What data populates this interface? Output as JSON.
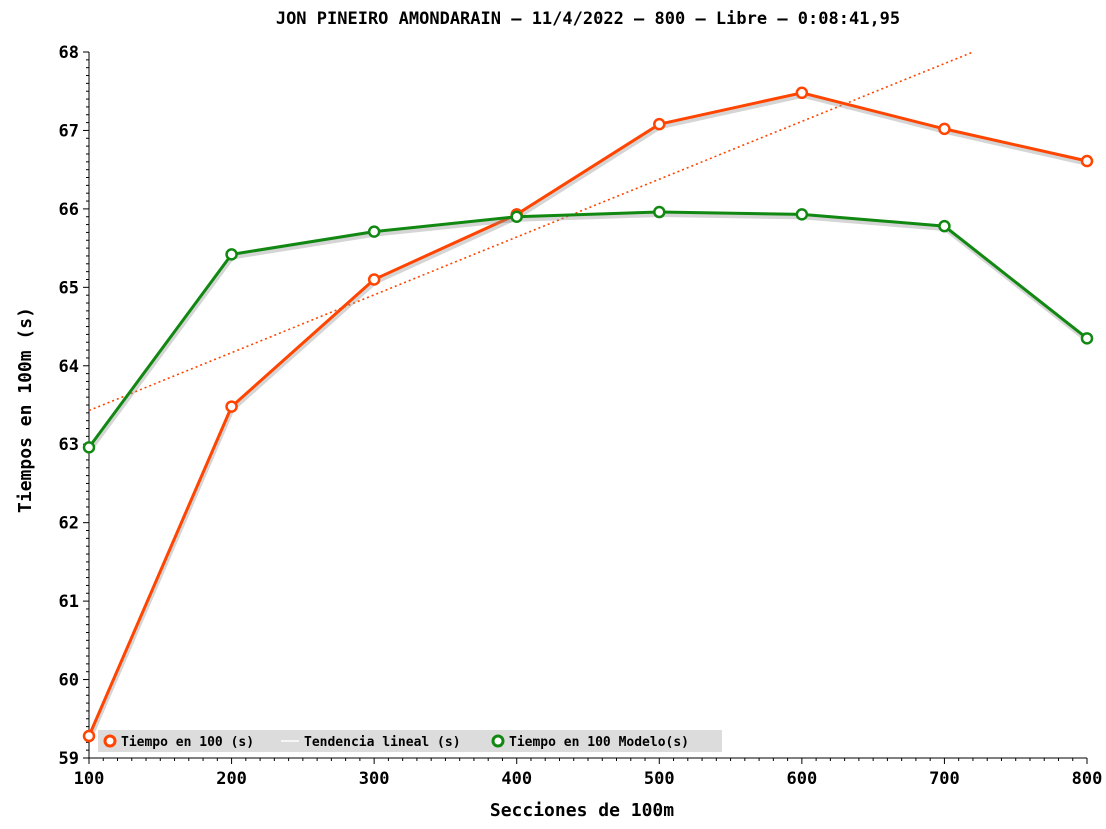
{
  "chart_data": {
    "type": "line",
    "title": "JON PINEIRO AMONDARAIN – 11/4/2022 – 800 – Libre – 0:08:41,95",
    "xlabel": "Secciones de 100m",
    "ylabel": "Tiempos en 100m (s)",
    "x": [
      100,
      200,
      300,
      400,
      500,
      600,
      700,
      800
    ],
    "xlim": [
      100,
      800
    ],
    "ylim": [
      59,
      68
    ],
    "xticks": [
      "100",
      "200",
      "300",
      "400",
      "500",
      "600",
      "700",
      "800"
    ],
    "yticks": [
      "59",
      "60",
      "61",
      "62",
      "63",
      "64",
      "65",
      "66",
      "67",
      "68"
    ],
    "grid": false,
    "legend_position": "bottom-left",
    "series": [
      {
        "name": "Tiempo en 100 (s)",
        "color": "#ff4500",
        "marker": "circle",
        "values": [
          59.28,
          63.48,
          65.1,
          65.93,
          67.08,
          67.48,
          67.02,
          66.61
        ]
      },
      {
        "name": "Tendencia lineal (s)",
        "color": "#ff4500",
        "style": "dotted",
        "trend_line": {
          "x": [
            100,
            720
          ],
          "y": [
            63.43,
            68.0
          ]
        }
      },
      {
        "name": "Tiempo en 100 Modelo(s)",
        "color": "#118811",
        "marker": "circle",
        "values": [
          62.96,
          65.42,
          65.71,
          65.9,
          65.96,
          65.93,
          65.78,
          64.35
        ]
      }
    ]
  }
}
